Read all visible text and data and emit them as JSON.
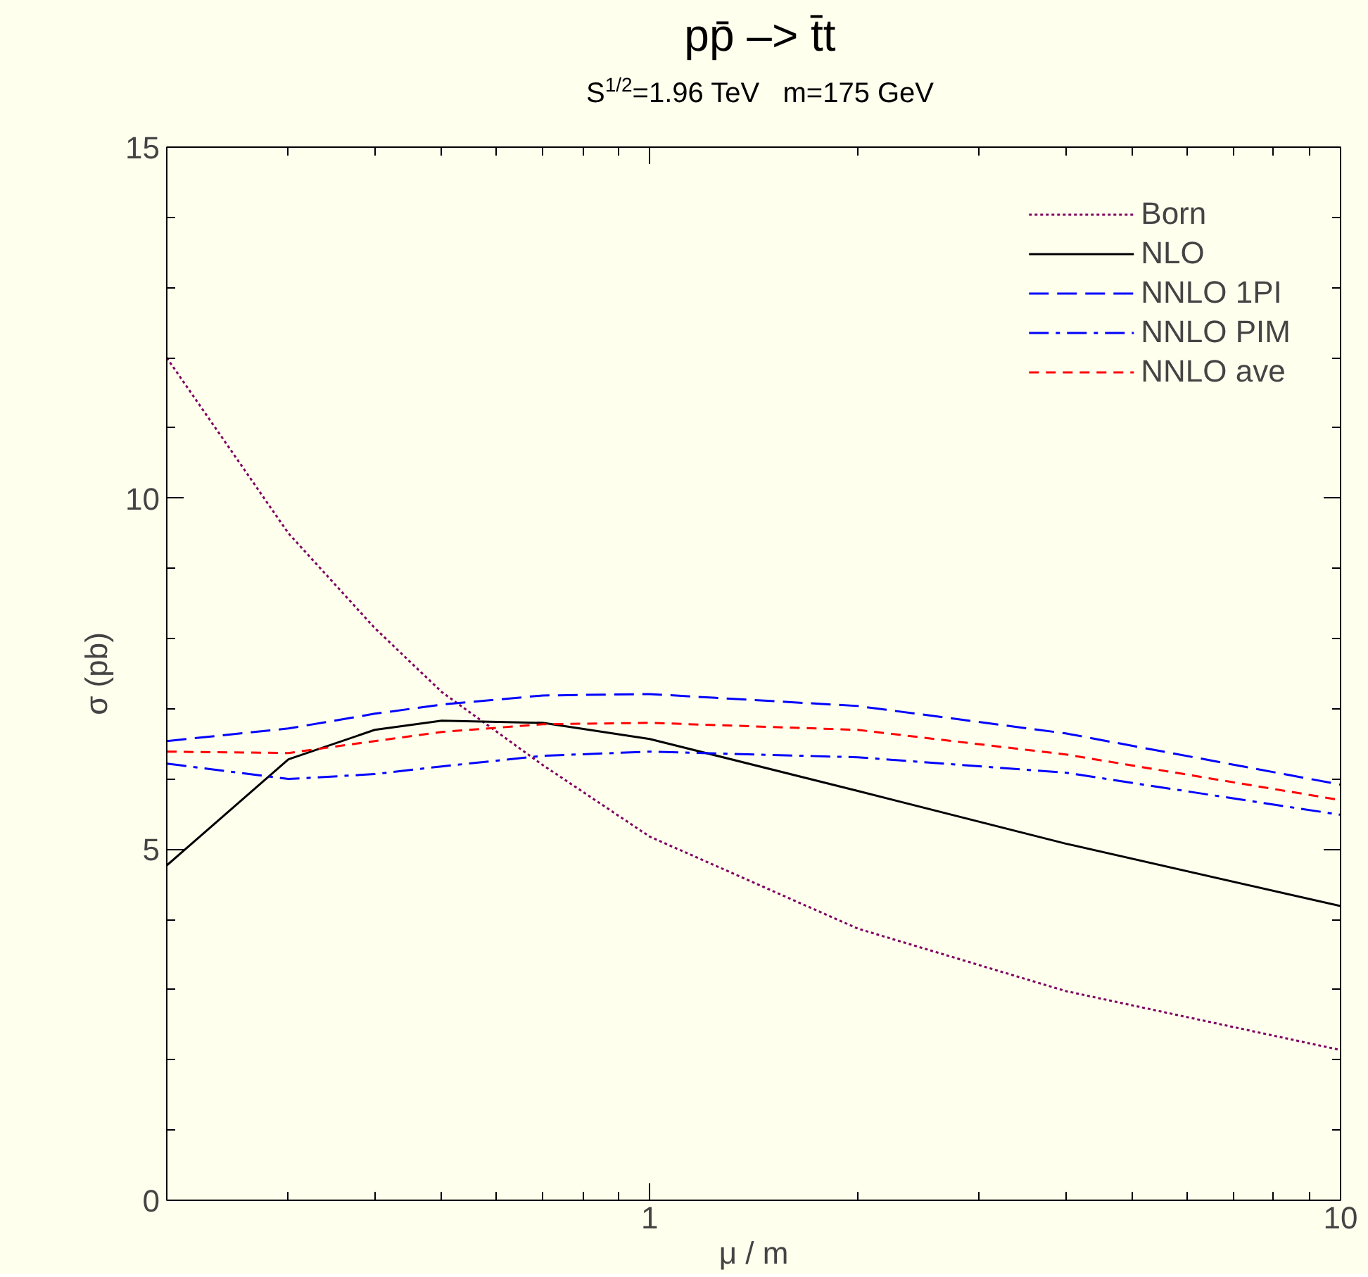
{
  "chart_data": {
    "type": "line",
    "title": "pp̄ –> t̄t",
    "subtitle": "S$^{1/2}$=1.96 TeV   m=175 GeV",
    "xlabel": "μ / m",
    "ylabel": "σ (pb)",
    "log": "x",
    "xlim": [
      0.2,
      10
    ],
    "xticks": [
      1,
      10
    ],
    "ylim": [
      0,
      15
    ],
    "yticks": [
      0,
      5,
      10,
      15
    ],
    "grid": false,
    "legend": "top right",
    "x": [
      0.2,
      0.3,
      0.4,
      0.5,
      0.7,
      1,
      2,
      4,
      10
    ],
    "series": [
      {
        "name": "Born",
        "color": "#800060",
        "line_style": "dotted",
        "values": [
          12.0,
          9.5,
          8.15,
          7.24,
          6.2,
          5.18,
          3.87,
          2.98,
          2.14
        ]
      },
      {
        "name": "NLO",
        "color": "#000000",
        "line_style": "solid",
        "values": [
          4.77,
          6.28,
          6.7,
          6.83,
          6.8,
          6.57,
          5.83,
          5.08,
          4.19
        ]
      },
      {
        "name": "NNLO 1PI",
        "color": "#0000ff",
        "line_style": "dashed",
        "values": [
          6.54,
          6.72,
          6.93,
          7.06,
          7.19,
          7.21,
          7.04,
          6.65,
          5.92
        ]
      },
      {
        "name": "NNLO PIM",
        "color": "#0000ff",
        "line_style": "dashdot",
        "values": [
          6.22,
          6.0,
          6.07,
          6.18,
          6.33,
          6.39,
          6.31,
          6.09,
          5.49
        ]
      },
      {
        "name": "NNLO ave",
        "color": "#ff0000",
        "line_style": "shortdash",
        "values": [
          6.39,
          6.37,
          6.54,
          6.67,
          6.78,
          6.8,
          6.7,
          6.35,
          5.7
        ]
      }
    ]
  }
}
